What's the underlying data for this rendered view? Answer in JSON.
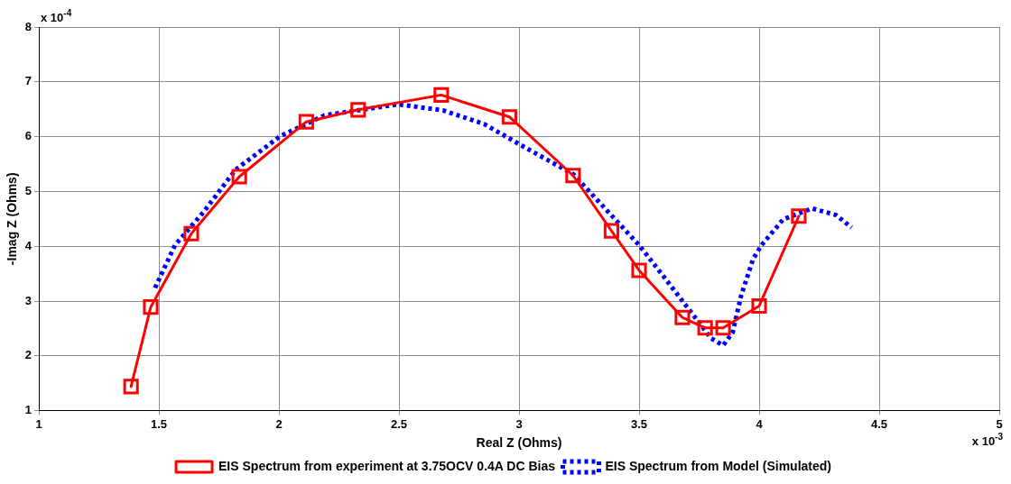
{
  "chart_data": {
    "type": "line",
    "xlabel": "Real Z (Ohms)",
    "ylabel": "-Imag Z (Ohms)",
    "annotations": [
      "x 10$^{-4}$",
      "x 10$^{-3}$"
    ],
    "xlim": [
      1,
      5
    ],
    "xticks": [
      1,
      1.5,
      2,
      2.5,
      3,
      3.5,
      4,
      4.5,
      5
    ],
    "ylim": [
      1,
      8
    ],
    "yticks": [
      1,
      2,
      3,
      4,
      5,
      6,
      7,
      8
    ],
    "grid": true,
    "legend": "bottom",
    "series": [
      {
        "name": "EIS Spectrum from experiment at 3.75OCV 0.4A DC Bias",
        "color": "#ff0000",
        "marker": "square",
        "line_style": "solid",
        "x": [
          1.384,
          1.466,
          1.635,
          1.835,
          2.114,
          2.33,
          2.676,
          2.96,
          3.225,
          3.385,
          3.5,
          3.68,
          3.775,
          3.85,
          4.0,
          4.165
        ],
        "values": [
          1.44,
          2.89,
          4.23,
          5.27,
          6.27,
          6.49,
          6.76,
          6.36,
          5.29,
          4.28,
          3.56,
          2.7,
          2.51,
          2.51,
          2.91,
          4.55
        ]
      },
      {
        "name": "EIS Spectrum from Model (Simulated)",
        "color": "#0000ff",
        "marker": "none",
        "line_style": "dotted",
        "x": [
          1.484,
          1.567,
          1.687,
          1.82,
          2.006,
          2.19,
          2.497,
          2.683,
          2.855,
          3.03,
          3.227,
          3.39,
          3.5,
          3.6,
          3.7,
          3.8,
          3.85,
          3.89,
          3.925,
          3.975,
          4.01,
          4.1,
          4.22,
          4.32,
          4.385
        ],
        "values": [
          3.24,
          4.02,
          4.63,
          5.4,
          6.01,
          6.39,
          6.59,
          6.48,
          6.23,
          5.79,
          5.31,
          4.54,
          4.02,
          3.46,
          2.89,
          2.32,
          2.19,
          2.43,
          3.1,
          3.77,
          4.02,
          4.49,
          4.69,
          4.57,
          4.34
        ]
      }
    ]
  }
}
